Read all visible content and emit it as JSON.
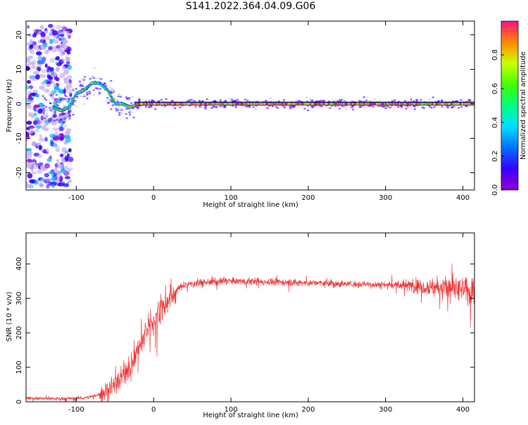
{
  "title": "S141.2022.364.04.09.G06",
  "colors": {
    "snr_line": "#ee3333",
    "freq_line": "#000000"
  },
  "chart_data": [
    {
      "type": "heatmap",
      "title": "S141.2022.364.04.09.G06",
      "xlabel": "Height of straight line (km)",
      "ylabel": "Frequency (Hz)",
      "xlim": [
        -165,
        415
      ],
      "ylim": [
        -25,
        24
      ],
      "xticks": [
        -100,
        0,
        100,
        200,
        300,
        400
      ],
      "yticks": [
        -20,
        -10,
        0,
        10,
        20
      ],
      "xtick_labels": [
        "-100",
        "0",
        "100",
        "200",
        "300",
        "400"
      ],
      "ytick_labels": [
        "-20",
        "-10",
        "0",
        "10",
        "20"
      ],
      "colorbar": {
        "label": "Normalized spectral amplitude",
        "range": [
          0,
          1
        ],
        "ticks": [
          0.0,
          0.2,
          0.4,
          0.6,
          0.8
        ],
        "tick_labels": [
          "0.0",
          "0.2",
          "0.4",
          "0.6",
          "0.8"
        ],
        "colormap": [
          "#9400d3",
          "#3a00ff",
          "#00b7ff",
          "#00ffaa",
          "#22ff00",
          "#ccff00",
          "#ffaa00",
          "#ff2200",
          "#ff1080"
        ]
      },
      "ridge": {
        "x": [
          -130,
          -120,
          -110,
          -100,
          -90,
          -80,
          -70,
          -60,
          -50,
          -40,
          -30,
          -20,
          0,
          100,
          200,
          300,
          415
        ],
        "y": [
          -1,
          -2,
          -1,
          3,
          4,
          6,
          6,
          4,
          0,
          0,
          -1,
          0,
          0,
          0,
          0,
          0,
          0
        ]
      },
      "reference_line_y": 0.5,
      "grid": false
    },
    {
      "type": "line",
      "xlabel": "Height of straight line (km)",
      "ylabel": "SNR (10 * v/v)",
      "xlim": [
        -165,
        415
      ],
      "ylim": [
        0,
        490
      ],
      "xticks": [
        -100,
        0,
        100,
        200,
        300,
        400
      ],
      "yticks": [
        0,
        100,
        200,
        300,
        400
      ],
      "xtick_labels": [
        "-100",
        "0",
        "100",
        "200",
        "300",
        "400"
      ],
      "ytick_labels": [
        "0",
        "100",
        "200",
        "300",
        "400"
      ],
      "series": [
        {
          "x": [
            -165,
            -150,
            -130,
            -110,
            -90,
            -80,
            -70,
            -60,
            -50,
            -40,
            -30,
            -20,
            -10,
            0,
            10,
            20,
            30,
            40,
            60,
            80,
            100,
            150,
            200,
            250,
            300,
            350,
            380,
            400,
            415
          ],
          "y": [
            12,
            10,
            9,
            10,
            11,
            14,
            22,
            35,
            55,
            75,
            105,
            150,
            200,
            240,
            265,
            300,
            325,
            340,
            345,
            348,
            350,
            348,
            345,
            342,
            340,
            335,
            330,
            325,
            320
          ]
        }
      ],
      "grid": false
    }
  ]
}
